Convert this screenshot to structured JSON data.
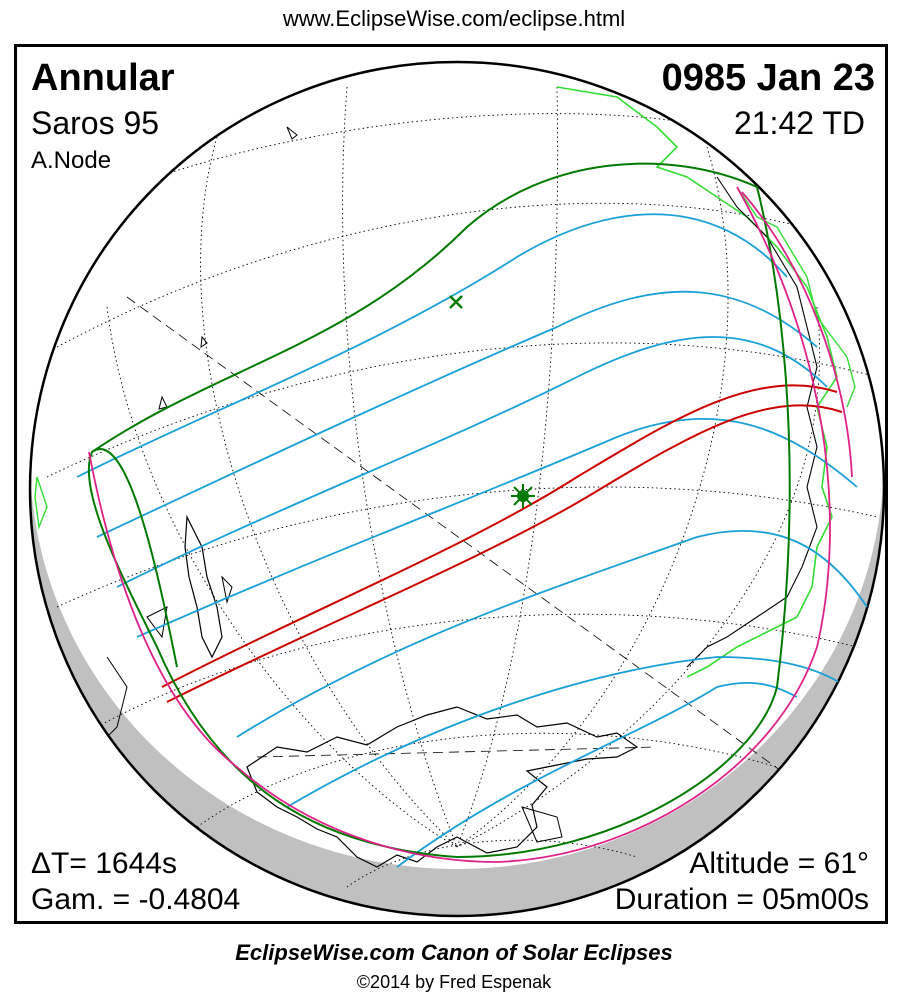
{
  "header": {
    "url": "www.EclipseWise.com/eclipse.html"
  },
  "eclipse": {
    "type": "Annular",
    "date": "0985 Jan 23",
    "saros": "Saros  95",
    "time": "21:42 TD",
    "node": "A.Node",
    "delta_t": "ΔT=   1644s",
    "gamma": "Gam. = -0.4804",
    "altitude": "Altitude = 61°",
    "duration": "Duration = 05m00s"
  },
  "colors": {
    "central_path": "#cc0000",
    "penumbral_limits": "#007a00",
    "partial_curves": "#1aa0d8",
    "rise_set_curves": "#e0218a",
    "coastlines_greenland": "#33dd33",
    "coastlines": "#000000",
    "night_shade": "#c0c0c0"
  },
  "footer": {
    "title": "EclipseWise.com Canon of Solar Eclipses",
    "copyright": "©2014 by Fred Espenak"
  }
}
